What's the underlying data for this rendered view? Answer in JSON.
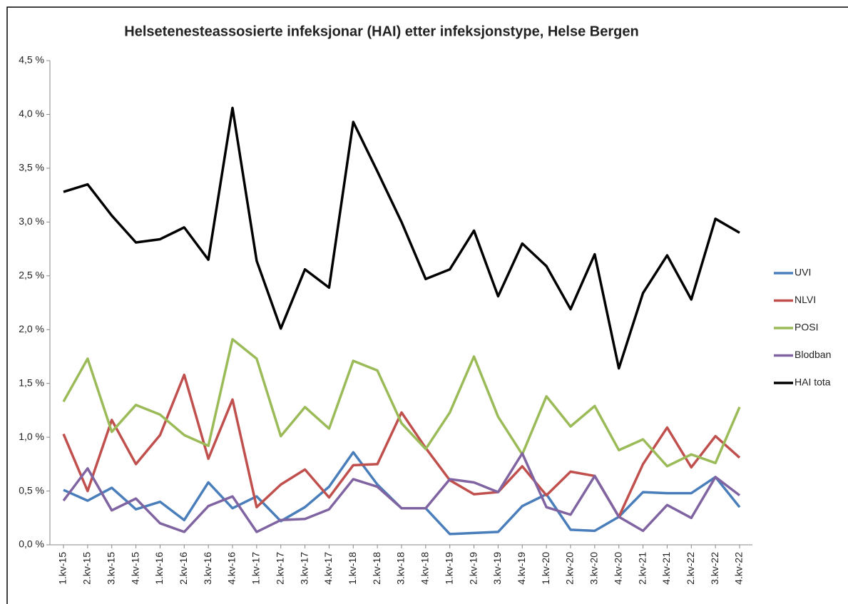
{
  "chart_data": {
    "type": "line",
    "title": "Helsetenesteassosierte infeksjonar (HAI) etter infeksjonstype, Helse Bergen",
    "categories": [
      "1.kv-15",
      "2.kv-15",
      "3.kv-15",
      "4.kv-15",
      "1.kv-16",
      "2.kv-16",
      "3.kv-16",
      "4.kv-16",
      "1.kv-17",
      "2.kv-17",
      "3.kv-17",
      "4.kv-17",
      "1.kv-18",
      "2.kv-18",
      "3.kv-18",
      "4.kv-18",
      "1.kv-19",
      "2.kv-19",
      "3.kv-19",
      "4.kv-19",
      "1.kv-20",
      "2.kv-20",
      "3.kv-20",
      "4.kv-20",
      "2.kv-21",
      "4.kv-21",
      "2.kv-22",
      "3.kv-22",
      "4.kv-22"
    ],
    "series": [
      {
        "name": "UVI",
        "color": "#4a7ebb",
        "values": [
          0.51,
          0.41,
          0.53,
          0.33,
          0.4,
          0.23,
          0.58,
          0.34,
          0.45,
          0.22,
          0.35,
          0.54,
          0.86,
          0.56,
          0.34,
          0.34,
          0.1,
          0.11,
          0.12,
          0.36,
          0.47,
          0.14,
          0.13,
          0.26,
          0.49,
          0.48,
          0.48,
          0.63,
          0.35
        ]
      },
      {
        "name": "NLVI",
        "color": "#c0504d",
        "values": [
          1.03,
          0.5,
          1.16,
          0.75,
          1.02,
          1.58,
          0.8,
          1.35,
          0.35,
          0.56,
          0.7,
          0.44,
          0.74,
          0.75,
          1.23,
          0.9,
          0.6,
          0.47,
          0.49,
          0.73,
          0.46,
          0.68,
          0.64,
          0.26,
          0.75,
          1.09,
          0.72,
          1.01,
          0.81
        ]
      },
      {
        "name": "POSI",
        "color": "#9bbb59",
        "values": [
          1.33,
          1.73,
          1.05,
          1.3,
          1.21,
          1.02,
          0.92,
          1.91,
          1.73,
          1.01,
          1.28,
          1.08,
          1.71,
          1.62,
          1.13,
          0.89,
          1.23,
          1.75,
          1.19,
          0.84,
          1.38,
          1.1,
          1.29,
          0.88,
          0.98,
          0.73,
          0.84,
          0.76,
          1.28
        ]
      },
      {
        "name": "Blodban",
        "color": "#8064a2",
        "values": [
          0.41,
          0.71,
          0.32,
          0.43,
          0.2,
          0.12,
          0.36,
          0.45,
          0.12,
          0.23,
          0.24,
          0.33,
          0.61,
          0.54,
          0.34,
          0.34,
          0.61,
          0.58,
          0.49,
          0.85,
          0.35,
          0.28,
          0.64,
          0.26,
          0.13,
          0.37,
          0.25,
          0.63,
          0.46
        ]
      },
      {
        "name": "HAI tota",
        "color": "#000000",
        "values": [
          3.28,
          3.35,
          3.06,
          2.81,
          2.84,
          2.95,
          2.65,
          4.06,
          2.64,
          2.01,
          2.56,
          2.39,
          3.93,
          3.47,
          3.0,
          2.47,
          2.56,
          2.92,
          2.31,
          2.8,
          2.59,
          2.19,
          2.7,
          1.64,
          2.34,
          2.69,
          2.28,
          3.03,
          2.9
        ]
      }
    ],
    "ylim": [
      0,
      4.5
    ],
    "yticks": [
      {
        "value": 0,
        "label": "0,0 %"
      },
      {
        "value": 0.5,
        "label": "0,5 %"
      },
      {
        "value": 1,
        "label": "1,0 %"
      },
      {
        "value": 1.5,
        "label": "1,5 %"
      },
      {
        "value": 2,
        "label": "2,0 %"
      },
      {
        "value": 2.5,
        "label": "2,5 %"
      },
      {
        "value": 3,
        "label": "3,0 %"
      },
      {
        "value": 3.5,
        "label": "3,5 %"
      },
      {
        "value": 4,
        "label": "4,0 %"
      },
      {
        "value": 4.5,
        "label": "4,5 %"
      }
    ],
    "grid": false,
    "legend": "right"
  }
}
